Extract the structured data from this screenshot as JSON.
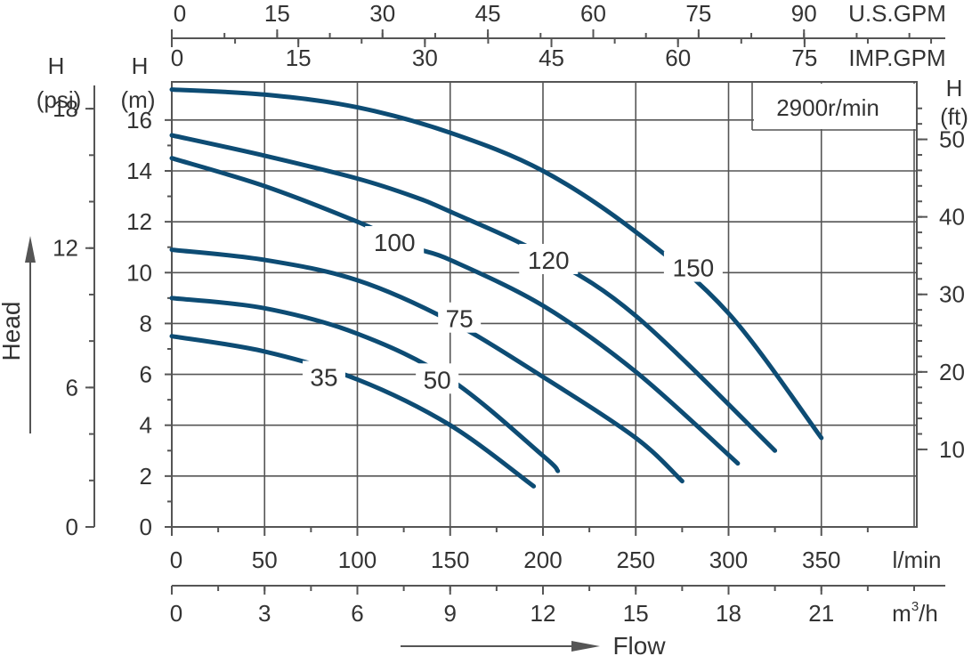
{
  "chart_data": {
    "type": "line",
    "title": "",
    "speed_label": "2900r/min",
    "series_color": "#0d4c74",
    "axis_color": "#555555",
    "x_primary": {
      "unit": "l/min",
      "range": [
        0,
        400
      ],
      "ticks": [
        0,
        50,
        100,
        150,
        200,
        250,
        300,
        350
      ],
      "tick_labels": [
        "0",
        "50",
        "100",
        "150",
        "200",
        "250",
        "300",
        "350"
      ]
    },
    "x_m3h": {
      "unit_base": "m",
      "unit_sup": "3",
      "unit_tail": "/h",
      "ticks": [
        0,
        3,
        6,
        9,
        12,
        15,
        18,
        21
      ],
      "tick_labels": [
        "0",
        "3",
        "6",
        "9",
        "12",
        "15",
        "18",
        "21"
      ]
    },
    "x_usgpm": {
      "unit": "U.S.GPM",
      "ticks": [
        0,
        15,
        30,
        45,
        60,
        75,
        90
      ],
      "tick_labels": [
        "0",
        "15",
        "30",
        "45",
        "60",
        "75",
        "90"
      ]
    },
    "x_impgpm": {
      "unit": "IMP.GPM",
      "ticks": [
        0,
        15,
        30,
        45,
        60,
        75
      ],
      "tick_labels": [
        "0",
        "15",
        "30",
        "45",
        "60",
        "75"
      ]
    },
    "y_primary": {
      "label_top": "H",
      "label_unit": "(m)",
      "range": [
        0,
        17.5
      ],
      "ticks": [
        0,
        2,
        4,
        6,
        8,
        10,
        12,
        14,
        16
      ],
      "tick_labels": [
        "0",
        "2",
        "4",
        "6",
        "8",
        "10",
        "12",
        "14",
        "16"
      ]
    },
    "y_psi": {
      "label_top": "H",
      "label_unit": "(psi)",
      "ticks": [
        0,
        6,
        12,
        18
      ],
      "tick_labels": [
        "0",
        "6",
        "12",
        "18"
      ]
    },
    "y_ft": {
      "label_top": "H",
      "label_unit": "(ft)",
      "ticks": [
        10,
        20,
        30,
        40,
        50
      ],
      "tick_labels": [
        "10",
        "20",
        "30",
        "40",
        "50"
      ]
    },
    "axis_title_y": "Head",
    "axis_title_x": "Flow",
    "series": [
      {
        "name": "35",
        "x": [
          0,
          50,
          100,
          150,
          195
        ],
        "y": [
          7.5,
          6.9,
          5.8,
          4.0,
          1.6
        ],
        "label_at": [
          82,
          5.9
        ]
      },
      {
        "name": "50",
        "x": [
          0,
          50,
          100,
          150,
          200,
          208
        ],
        "y": [
          9.0,
          8.6,
          7.6,
          5.8,
          2.8,
          2.2
        ],
        "label_at": [
          143,
          5.8
        ]
      },
      {
        "name": "75",
        "x": [
          0,
          50,
          100,
          150,
          200,
          250,
          275
        ],
        "y": [
          10.9,
          10.5,
          9.7,
          8.1,
          5.9,
          3.5,
          1.8
        ],
        "label_at": [
          155,
          8.2
        ]
      },
      {
        "name": "100",
        "x": [
          0,
          50,
          100,
          130,
          150,
          200,
          250,
          305
        ],
        "y": [
          14.5,
          13.4,
          12.0,
          11.0,
          10.5,
          8.7,
          6.1,
          2.5
        ],
        "label_at": [
          120,
          11.2
        ]
      },
      {
        "name": "120",
        "x": [
          0,
          50,
          100,
          130,
          150,
          200,
          250,
          325
        ],
        "y": [
          15.4,
          14.6,
          13.7,
          13.0,
          12.4,
          10.7,
          8.3,
          3.0
        ],
        "label_at": [
          203,
          10.5
        ]
      },
      {
        "name": "150",
        "x": [
          0,
          50,
          100,
          150,
          200,
          250,
          300,
          350
        ],
        "y": [
          17.2,
          17.0,
          16.5,
          15.5,
          14.0,
          11.6,
          8.4,
          3.5
        ],
        "label_at": [
          281,
          10.2
        ]
      }
    ]
  }
}
